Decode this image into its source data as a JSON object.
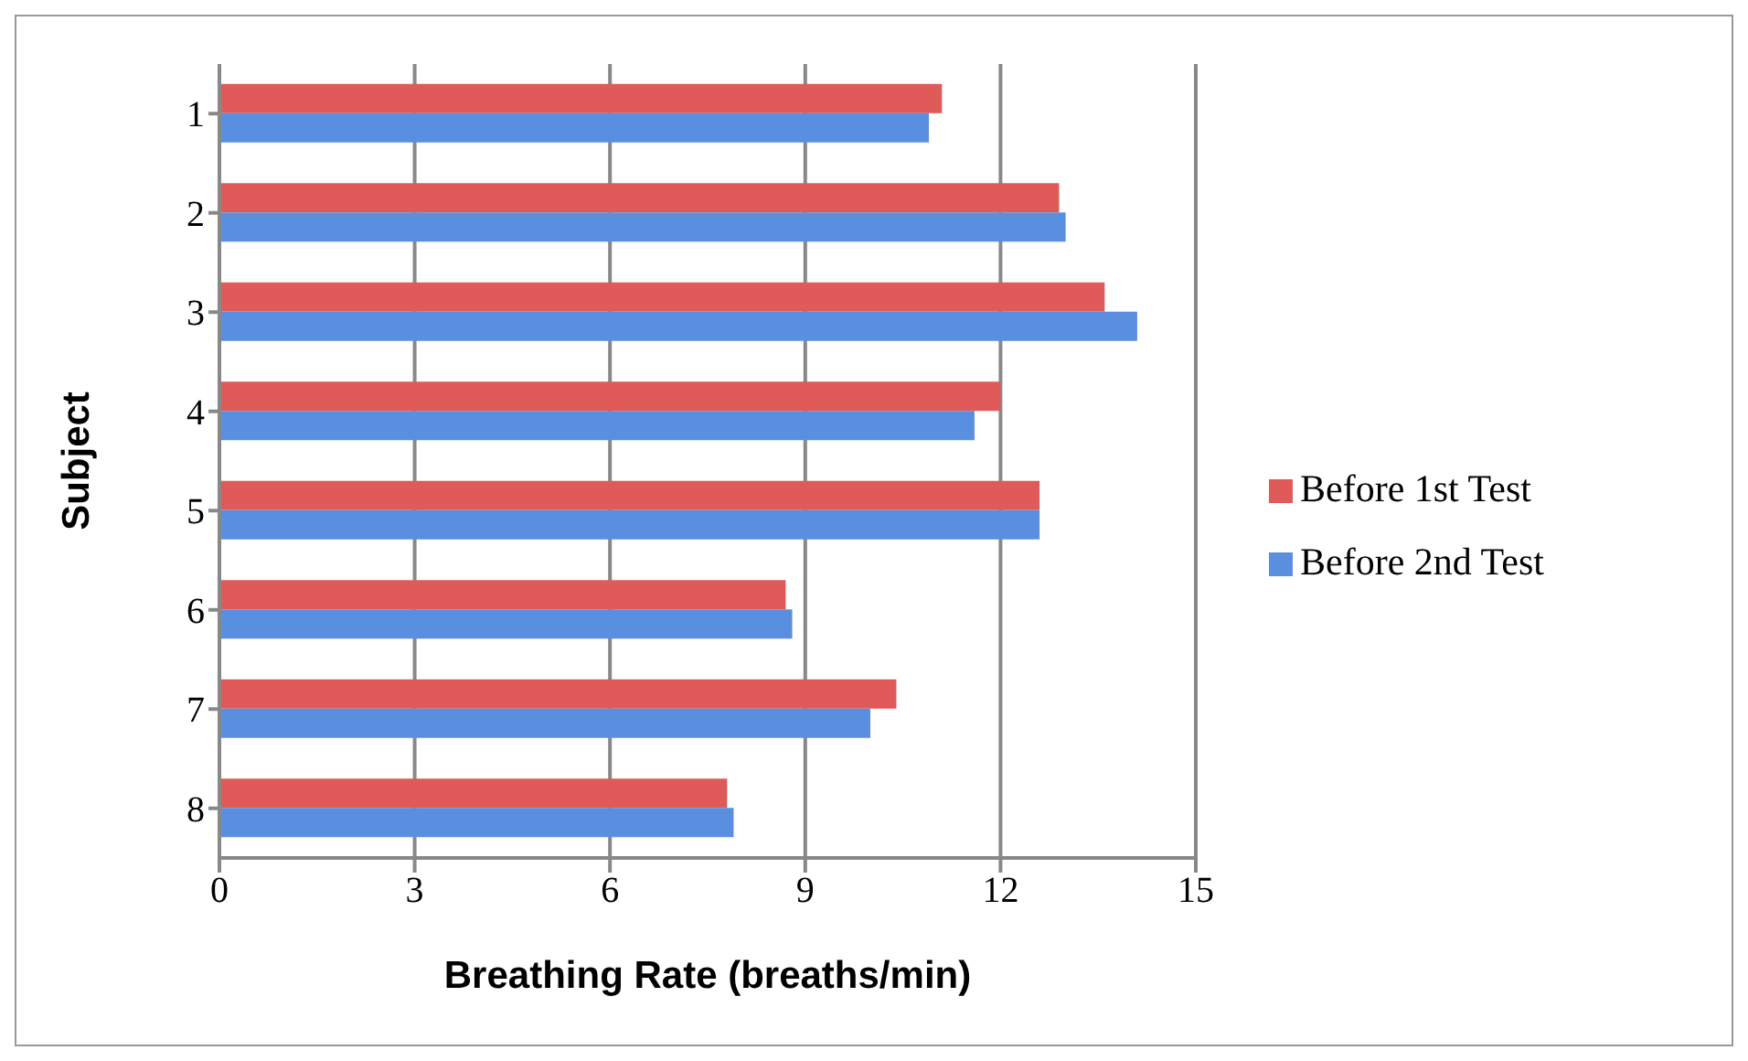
{
  "chart_data": {
    "type": "bar",
    "orientation": "horizontal",
    "xlabel": "Breathing Rate (breaths/min)",
    "ylabel": "Subject",
    "categories": [
      "1",
      "2",
      "3",
      "4",
      "5",
      "6",
      "7",
      "8"
    ],
    "series": [
      {
        "name": "Before 1st Test",
        "color": "#e05a5a",
        "values": [
          11.1,
          12.9,
          13.6,
          12.0,
          12.6,
          8.7,
          10.4,
          7.8
        ]
      },
      {
        "name": "Before 2nd Test",
        "color": "#5a8fe0",
        "values": [
          10.9,
          13.0,
          14.1,
          11.6,
          12.6,
          8.8,
          10.0,
          7.9
        ]
      }
    ],
    "xlim": [
      0,
      15
    ],
    "xticks": [
      0,
      3,
      6,
      9,
      12,
      15
    ],
    "grid": "x",
    "legend": "right"
  }
}
